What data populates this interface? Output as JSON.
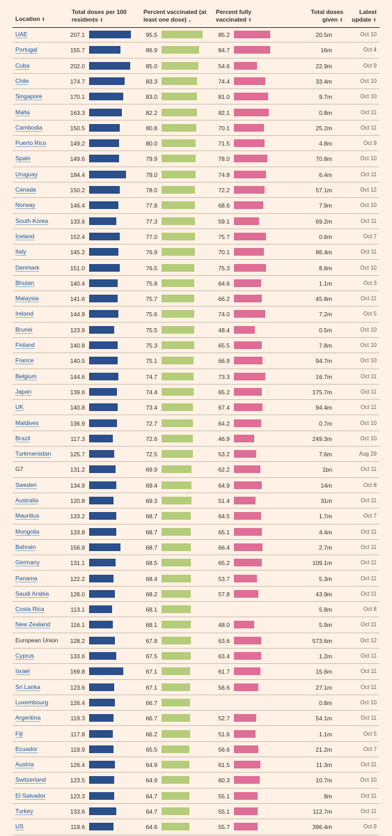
{
  "header": {
    "location": "Location",
    "doses_per_100": [
      "Total doses per 100",
      "residents"
    ],
    "pct_vaccinated": [
      "Percent vaccinated (at",
      "least one dose)"
    ],
    "pct_full": [
      "Percent fully",
      "vaccinated"
    ],
    "total_doses": [
      "Total doses",
      "given"
    ],
    "latest": [
      "Latest",
      "update"
    ],
    "sort_icon": "sort-up-down-icon",
    "sorted_desc_icon": "chevron-down-icon"
  },
  "colors": {
    "doses": "#2a4f8a",
    "vaccinated": "#b5cc7a",
    "fully": "#de6e95",
    "link": "#0f5499"
  },
  "chart_data": {
    "type": "table",
    "columns": [
      "Location",
      "Total doses per 100 residents",
      "Percent vaccinated (at least one dose)",
      "Percent fully vaccinated",
      "Total doses given",
      "Latest update"
    ],
    "rows": [
      {
        "location": "UAE",
        "doses": "207.1",
        "vacc": "95.5",
        "full": "85.2",
        "total": "20.5m",
        "update": "Oct 10",
        "link": true
      },
      {
        "location": "Portugal",
        "doses": "155.7",
        "vacc": "86.9",
        "full": "84.7",
        "total": "16m",
        "update": "Oct 4",
        "link": true
      },
      {
        "location": "Cuba",
        "doses": "202.0",
        "vacc": "85.0",
        "full": "54.6",
        "total": "22.9m",
        "update": "Oct 9",
        "link": true
      },
      {
        "location": "Chile",
        "doses": "174.7",
        "vacc": "83.3",
        "full": "74.4",
        "total": "33.4m",
        "update": "Oct 10",
        "link": true
      },
      {
        "location": "Singapore",
        "doses": "170.1",
        "vacc": "83.0",
        "full": "81.0",
        "total": "9.7m",
        "update": "Oct 10",
        "link": true
      },
      {
        "location": "Malta",
        "doses": "163.3",
        "vacc": "82.2",
        "full": "82.1",
        "total": "0.8m",
        "update": "Oct 11",
        "link": true
      },
      {
        "location": "Cambodia",
        "doses": "150.5",
        "vacc": "80.8",
        "full": "70.1",
        "total": "25.2m",
        "update": "Oct 11",
        "link": true
      },
      {
        "location": "Puerto Rico",
        "doses": "149.2",
        "vacc": "80.0",
        "full": "71.5",
        "total": "4.8m",
        "update": "Oct 9",
        "link": true
      },
      {
        "location": "Spain",
        "doses": "149.6",
        "vacc": "79.9",
        "full": "78.0",
        "total": "70.8m",
        "update": "Oct 10",
        "link": true
      },
      {
        "location": "Uruguay",
        "doses": "184.4",
        "vacc": "79.0",
        "full": "74.8",
        "total": "6.4m",
        "update": "Oct 11",
        "link": true
      },
      {
        "location": "Canada",
        "doses": "150.2",
        "vacc": "78.0",
        "full": "72.2",
        "total": "57.1m",
        "update": "Oct 12",
        "link": true
      },
      {
        "location": "Norway",
        "doses": "146.4",
        "vacc": "77.8",
        "full": "68.6",
        "total": "7.9m",
        "update": "Oct 10",
        "link": true
      },
      {
        "location": "South Korea",
        "doses": "133.6",
        "vacc": "77.3",
        "full": "59.1",
        "total": "69.2m",
        "update": "Oct 11",
        "link": true
      },
      {
        "location": "Iceland",
        "doses": "152.4",
        "vacc": "77.0",
        "full": "75.7",
        "total": "0.6m",
        "update": "Oct 7",
        "link": true
      },
      {
        "location": "Italy",
        "doses": "145.2",
        "vacc": "76.9",
        "full": "70.1",
        "total": "86.4m",
        "update": "Oct 11",
        "link": true
      },
      {
        "location": "Denmark",
        "doses": "151.0",
        "vacc": "76.5",
        "full": "75.3",
        "total": "8.8m",
        "update": "Oct 10",
        "link": true
      },
      {
        "location": "Bhutan",
        "doses": "140.4",
        "vacc": "75.8",
        "full": "64.6",
        "total": "1.1m",
        "update": "Oct 3",
        "link": true
      },
      {
        "location": "Malaysia",
        "doses": "141.6",
        "vacc": "75.7",
        "full": "66.2",
        "total": "45.8m",
        "update": "Oct 11",
        "link": true
      },
      {
        "location": "Ireland",
        "doses": "144.9",
        "vacc": "75.6",
        "full": "74.0",
        "total": "7.2m",
        "update": "Oct 5",
        "link": true
      },
      {
        "location": "Brunei",
        "doses": "123.9",
        "vacc": "75.5",
        "full": "48.4",
        "total": "0.5m",
        "update": "Oct 10",
        "link": true
      },
      {
        "location": "Finland",
        "doses": "140.8",
        "vacc": "75.3",
        "full": "65.5",
        "total": "7.8m",
        "update": "Oct 10",
        "link": true
      },
      {
        "location": "France",
        "doses": "140.5",
        "vacc": "75.1",
        "full": "66.9",
        "total": "94.7m",
        "update": "Oct 10",
        "link": true
      },
      {
        "location": "Belgium",
        "doses": "144.6",
        "vacc": "74.7",
        "full": "73.3",
        "total": "16.7m",
        "update": "Oct 11",
        "link": true
      },
      {
        "location": "Japan",
        "doses": "139.6",
        "vacc": "74.4",
        "full": "65.2",
        "total": "175.7m",
        "update": "Oct 11",
        "link": true
      },
      {
        "location": "UK",
        "doses": "140.8",
        "vacc": "73.4",
        "full": "67.4",
        "total": "94.4m",
        "update": "Oct 11",
        "link": true
      },
      {
        "location": "Maldives",
        "doses": "136.9",
        "vacc": "72.7",
        "full": "64.2",
        "total": "0.7m",
        "update": "Oct 10",
        "link": true
      },
      {
        "location": "Brazil",
        "doses": "117.3",
        "vacc": "72.6",
        "full": "46.9",
        "total": "249.3m",
        "update": "Oct 10",
        "link": true
      },
      {
        "location": "Turkmenistan",
        "doses": "125.7",
        "vacc": "72.5",
        "full": "53.2",
        "total": "7.6m",
        "update": "Aug 29",
        "link": true
      },
      {
        "location": "G7",
        "doses": "131.2",
        "vacc": "69.9",
        "full": "62.2",
        "total": "1bn",
        "update": "Oct 11",
        "link": false
      },
      {
        "location": "Sweden",
        "doses": "134.9",
        "vacc": "69.4",
        "full": "64.9",
        "total": "14m",
        "update": "Oct 8",
        "link": true
      },
      {
        "location": "Australia",
        "doses": "120.8",
        "vacc": "69.3",
        "full": "51.4",
        "total": "31m",
        "update": "Oct 11",
        "link": true
      },
      {
        "location": "Mauritius",
        "doses": "133.2",
        "vacc": "68.7",
        "full": "64.5",
        "total": "1.7m",
        "update": "Oct 7",
        "link": true
      },
      {
        "location": "Mongolia",
        "doses": "133.8",
        "vacc": "68.7",
        "full": "65.1",
        "total": "4.4m",
        "update": "Oct 11",
        "link": true
      },
      {
        "location": "Bahrain",
        "doses": "156.9",
        "vacc": "68.7",
        "full": "66.4",
        "total": "2.7m",
        "update": "Oct 11",
        "link": true
      },
      {
        "location": "Germany",
        "doses": "131.1",
        "vacc": "68.5",
        "full": "65.2",
        "total": "109.1m",
        "update": "Oct 11",
        "link": true
      },
      {
        "location": "Panama",
        "doses": "122.2",
        "vacc": "68.4",
        "full": "53.7",
        "total": "5.3m",
        "update": "Oct 11",
        "link": true
      },
      {
        "location": "Saudi Arabia",
        "doses": "126.0",
        "vacc": "68.2",
        "full": "57.8",
        "total": "43.9m",
        "update": "Oct 11",
        "link": true
      },
      {
        "location": "Costa Rica",
        "doses": "113.1",
        "vacc": "68.1",
        "full": "",
        "total": "5.8m",
        "update": "Oct 8",
        "link": true
      },
      {
        "location": "New Zealand",
        "doses": "116.1",
        "vacc": "68.1",
        "full": "48.0",
        "total": "5.9m",
        "update": "Oct 11",
        "link": true
      },
      {
        "location": "European Union",
        "doses": "128.2",
        "vacc": "67.8",
        "full": "63.6",
        "total": "573.6m",
        "update": "Oct 12",
        "link": false
      },
      {
        "location": "Cyprus",
        "doses": "133.6",
        "vacc": "67.5",
        "full": "63.4",
        "total": "1.2m",
        "update": "Oct 11",
        "link": true
      },
      {
        "location": "Israel",
        "doses": "169.8",
        "vacc": "67.1",
        "full": "61.7",
        "total": "15.6m",
        "update": "Oct 11",
        "link": true
      },
      {
        "location": "Sri Lanka",
        "doses": "123.6",
        "vacc": "67.1",
        "full": "56.6",
        "total": "27.1m",
        "update": "Oct 11",
        "link": true
      },
      {
        "location": "Luxembourg",
        "doses": "126.4",
        "vacc": "66.7",
        "full": "",
        "total": "0.8m",
        "update": "Oct 10",
        "link": true
      },
      {
        "location": "Argentina",
        "doses": "119.3",
        "vacc": "66.7",
        "full": "52.7",
        "total": "54.1m",
        "update": "Oct 11",
        "link": true
      },
      {
        "location": "Fiji",
        "doses": "117.8",
        "vacc": "66.2",
        "full": "51.6",
        "total": "1.1m",
        "update": "Oct 5",
        "link": true
      },
      {
        "location": "Ecuador",
        "doses": "119.9",
        "vacc": "65.5",
        "full": "56.6",
        "total": "21.2m",
        "update": "Oct 7",
        "link": true
      },
      {
        "location": "Austria",
        "doses": "126.4",
        "vacc": "64.9",
        "full": "61.5",
        "total": "11.3m",
        "update": "Oct 11",
        "link": true
      },
      {
        "location": "Switzerland",
        "doses": "123.5",
        "vacc": "64.9",
        "full": "60.3",
        "total": "10.7m",
        "update": "Oct 10",
        "link": true
      },
      {
        "location": "El Salvador",
        "doses": "123.3",
        "vacc": "64.7",
        "full": "55.1",
        "total": "8m",
        "update": "Oct 11",
        "link": true
      },
      {
        "location": "Turkey",
        "doses": "133.6",
        "vacc": "64.7",
        "full": "55.1",
        "total": "112.7m",
        "update": "Oct 11",
        "link": true
      },
      {
        "location": "US",
        "doses": "119.6",
        "vacc": "64.6",
        "full": "55.7",
        "total": "396.4m",
        "update": "Oct 9",
        "link": true
      }
    ]
  }
}
